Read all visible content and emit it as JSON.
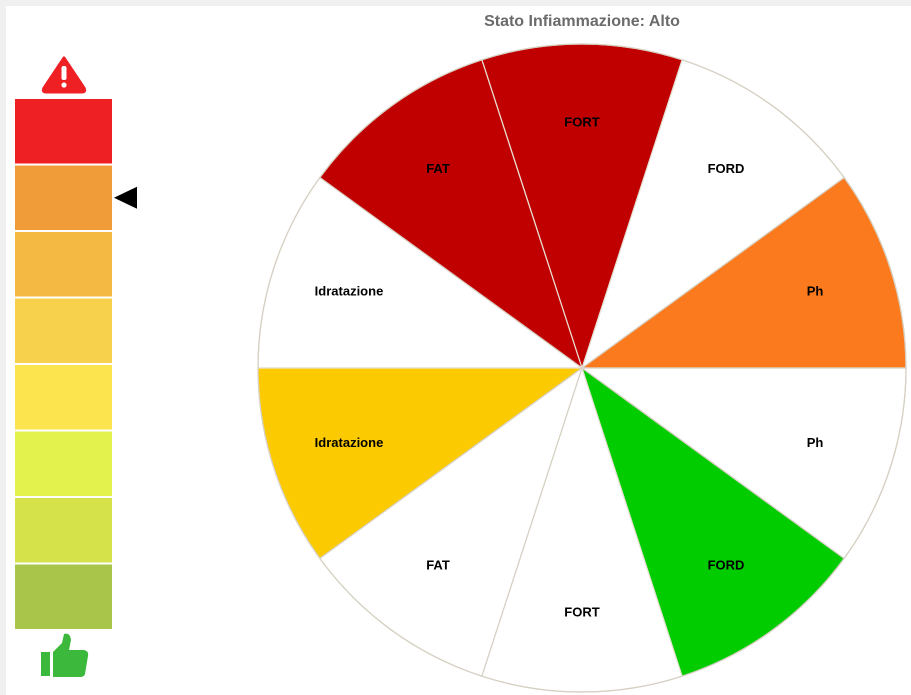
{
  "header": {
    "title": "Stato Infiammazione: Alto"
  },
  "gauge": {
    "levels": [
      {
        "color": "#ee2024"
      },
      {
        "color": "#f09c38"
      },
      {
        "color": "#f4b942"
      },
      {
        "color": "#f7d14c"
      },
      {
        "color": "#fbe44d"
      },
      {
        "color": "#e3f24c"
      },
      {
        "color": "#d5e24a"
      },
      {
        "color": "#a9c54a"
      }
    ],
    "indicator_level": 1
  },
  "wheel": {
    "segments": [
      {
        "label": "Ph",
        "color": "#fb7a1d"
      },
      {
        "label": "FORD",
        "color": "#ffffff"
      },
      {
        "label": "FORT",
        "color": "#c00000"
      },
      {
        "label": "FAT",
        "color": "#c00000"
      },
      {
        "label": "Idratazione",
        "color": "#ffffff"
      },
      {
        "label": "Idratazione",
        "color": "#fcca00"
      },
      {
        "label": "FAT",
        "color": "#ffffff"
      },
      {
        "label": "FORT",
        "color": "#ffffff"
      },
      {
        "label": "FORD",
        "color": "#00cc00"
      },
      {
        "label": "Ph",
        "color": "#ffffff"
      }
    ]
  }
}
